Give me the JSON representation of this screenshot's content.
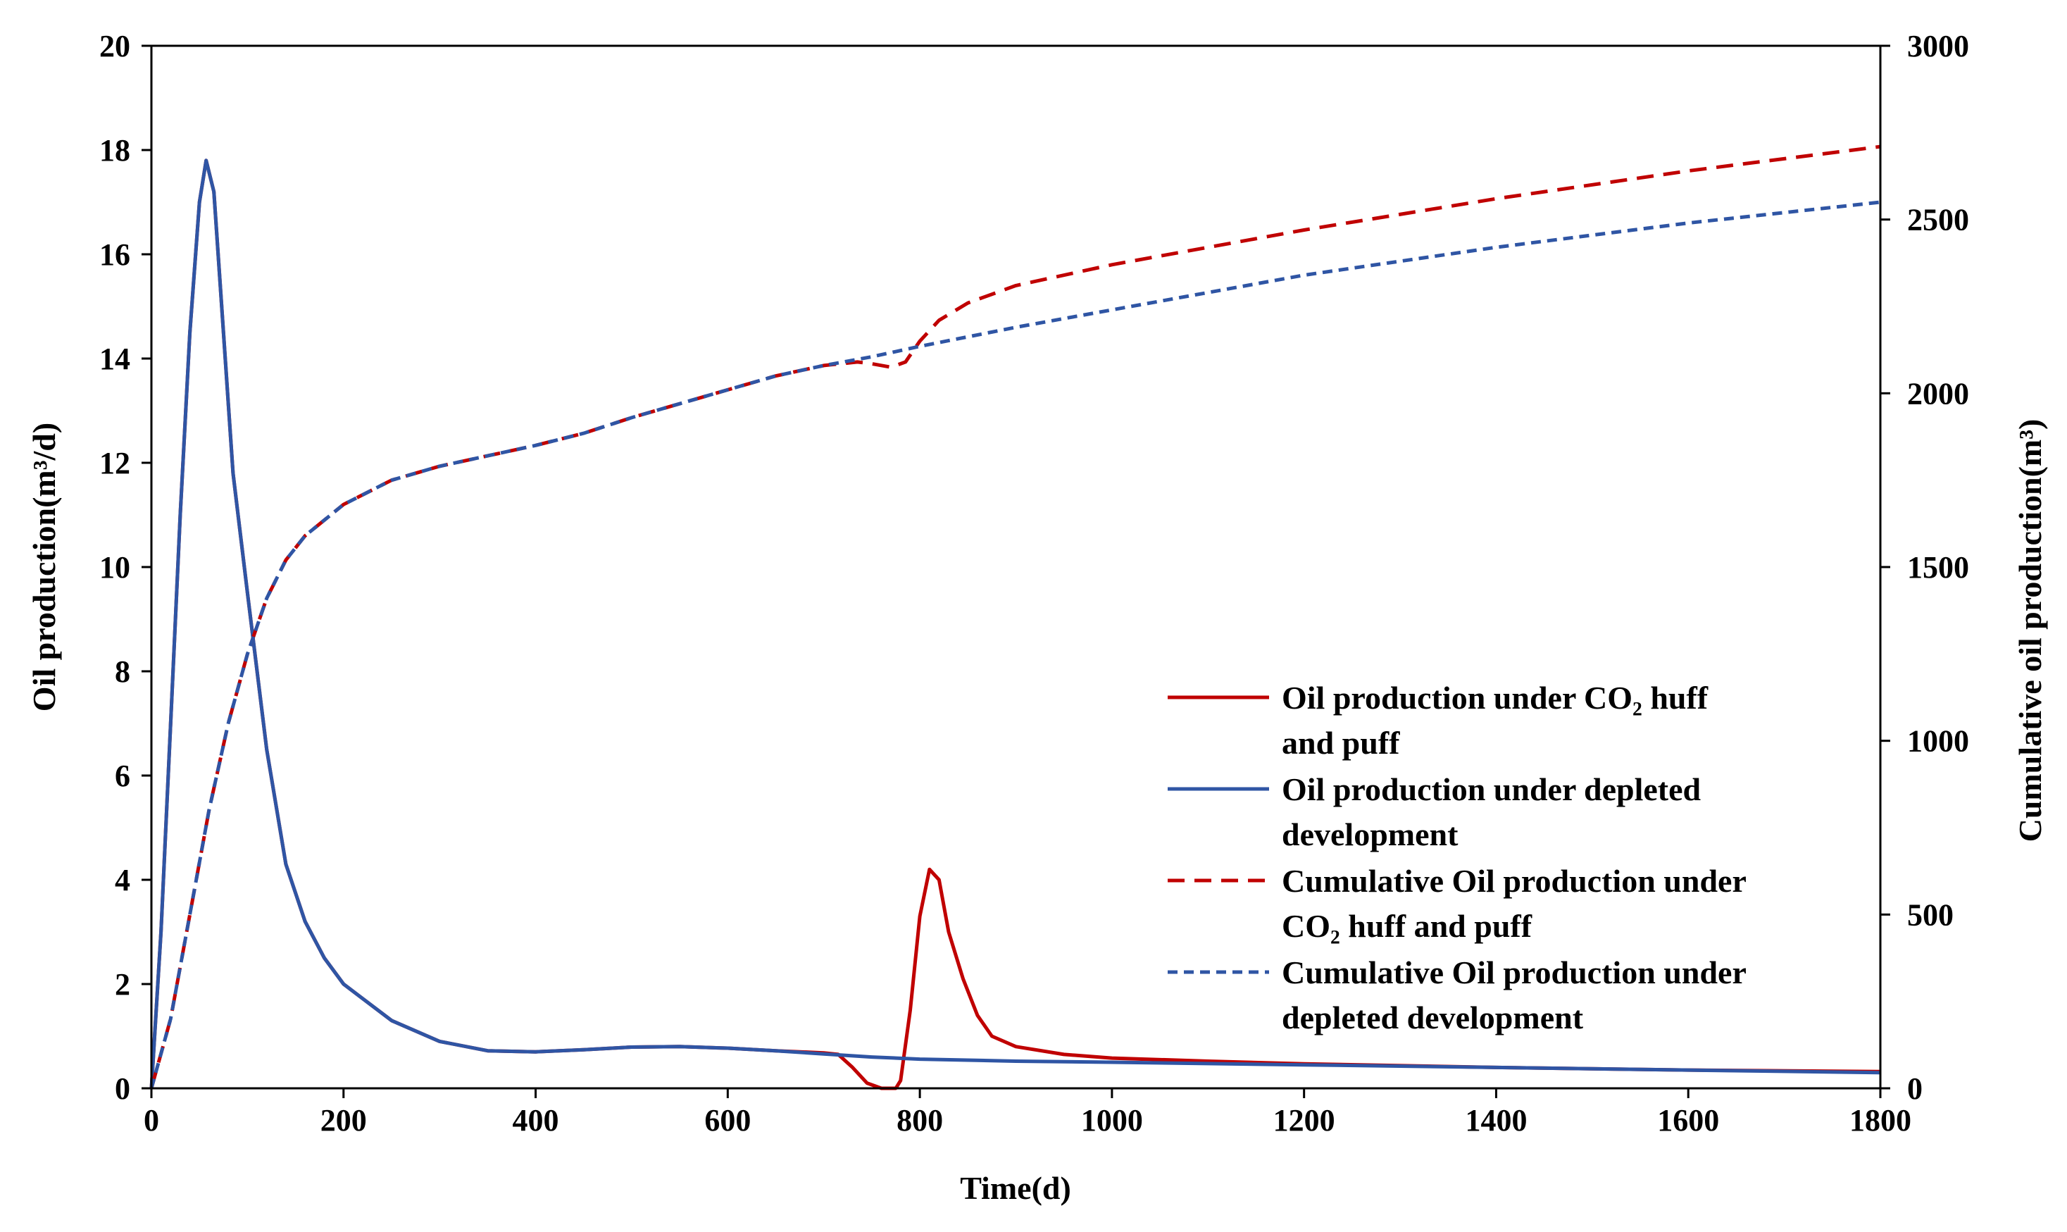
{
  "chart_data": {
    "type": "line",
    "title": "",
    "xlabel": "Time(d)",
    "ylabel_left": "Oil production(m³/d)",
    "ylabel_right": "Cumulative oil production(m³)",
    "xlim": [
      0,
      1800
    ],
    "ylim_left": [
      0,
      20
    ],
    "ylim_right": [
      0,
      3000
    ],
    "grid": false,
    "legend_position": "center-right",
    "x_ticks": [
      "0",
      "200",
      "400",
      "600",
      "800",
      "1000",
      "1200",
      "1400",
      "1600",
      "1800"
    ],
    "y_left_ticks": [
      "0",
      "2",
      "4",
      "6",
      "8",
      "10",
      "12",
      "14",
      "16",
      "18",
      "20"
    ],
    "y_right_ticks": [
      "0",
      "500",
      "1000",
      "1500",
      "2000",
      "2500",
      "3000"
    ],
    "series": [
      {
        "name": "Oil production under CO₂ huff and puff",
        "legend_lines": [
          "Oil production under CO₂ huff",
          "and puff"
        ],
        "axis": "left",
        "style": "solid",
        "color": "#C00000",
        "points": [
          [
            0,
            0
          ],
          [
            10,
            3
          ],
          [
            20,
            7
          ],
          [
            30,
            11
          ],
          [
            40,
            14.5
          ],
          [
            50,
            17
          ],
          [
            57,
            17.8
          ],
          [
            65,
            17.2
          ],
          [
            75,
            14.5
          ],
          [
            85,
            11.8
          ],
          [
            100,
            9.5
          ],
          [
            120,
            6.5
          ],
          [
            140,
            4.3
          ],
          [
            160,
            3.2
          ],
          [
            180,
            2.5
          ],
          [
            200,
            2.0
          ],
          [
            250,
            1.3
          ],
          [
            300,
            0.9
          ],
          [
            350,
            0.72
          ],
          [
            400,
            0.7
          ],
          [
            450,
            0.74
          ],
          [
            500,
            0.79
          ],
          [
            550,
            0.8
          ],
          [
            600,
            0.77
          ],
          [
            650,
            0.72
          ],
          [
            700,
            0.68
          ],
          [
            715,
            0.65
          ],
          [
            730,
            0.4
          ],
          [
            745,
            0.1
          ],
          [
            760,
            0
          ],
          [
            775,
            0
          ],
          [
            780,
            0.15
          ],
          [
            790,
            1.5
          ],
          [
            800,
            3.3
          ],
          [
            810,
            4.2
          ],
          [
            820,
            4.0
          ],
          [
            830,
            3.0
          ],
          [
            845,
            2.1
          ],
          [
            860,
            1.4
          ],
          [
            875,
            1.0
          ],
          [
            900,
            0.8
          ],
          [
            950,
            0.65
          ],
          [
            1000,
            0.58
          ],
          [
            1100,
            0.52
          ],
          [
            1200,
            0.47
          ],
          [
            1400,
            0.4
          ],
          [
            1600,
            0.35
          ],
          [
            1800,
            0.32
          ]
        ]
      },
      {
        "name": "Oil production under depleted development",
        "legend_lines": [
          "Oil production under depleted",
          "development"
        ],
        "axis": "left",
        "style": "solid",
        "color": "#2F55A4",
        "points": [
          [
            0,
            0
          ],
          [
            10,
            3
          ],
          [
            20,
            7
          ],
          [
            30,
            11
          ],
          [
            40,
            14.5
          ],
          [
            50,
            17
          ],
          [
            57,
            17.8
          ],
          [
            65,
            17.2
          ],
          [
            75,
            14.5
          ],
          [
            85,
            11.8
          ],
          [
            100,
            9.5
          ],
          [
            120,
            6.5
          ],
          [
            140,
            4.3
          ],
          [
            160,
            3.2
          ],
          [
            180,
            2.5
          ],
          [
            200,
            2.0
          ],
          [
            250,
            1.3
          ],
          [
            300,
            0.9
          ],
          [
            350,
            0.72
          ],
          [
            400,
            0.7
          ],
          [
            450,
            0.74
          ],
          [
            500,
            0.79
          ],
          [
            550,
            0.8
          ],
          [
            600,
            0.77
          ],
          [
            650,
            0.72
          ],
          [
            700,
            0.66
          ],
          [
            750,
            0.6
          ],
          [
            800,
            0.56
          ],
          [
            900,
            0.52
          ],
          [
            1000,
            0.5
          ],
          [
            1200,
            0.45
          ],
          [
            1400,
            0.4
          ],
          [
            1600,
            0.35
          ],
          [
            1800,
            0.3
          ]
        ]
      },
      {
        "name": "Cumulative Oil production under CO₂ huff and puff",
        "legend_lines": [
          "Cumulative Oil production under",
          "CO₂ huff and puff"
        ],
        "axis": "right",
        "style": "dashed",
        "color": "#C00000",
        "points": [
          [
            0,
            0
          ],
          [
            20,
            200
          ],
          [
            40,
            500
          ],
          [
            60,
            800
          ],
          [
            80,
            1050
          ],
          [
            100,
            1250
          ],
          [
            120,
            1410
          ],
          [
            140,
            1520
          ],
          [
            160,
            1590
          ],
          [
            200,
            1680
          ],
          [
            250,
            1750
          ],
          [
            300,
            1790
          ],
          [
            350,
            1820
          ],
          [
            400,
            1850
          ],
          [
            450,
            1885
          ],
          [
            500,
            1930
          ],
          [
            550,
            1970
          ],
          [
            600,
            2010
          ],
          [
            650,
            2050
          ],
          [
            700,
            2080
          ],
          [
            735,
            2090
          ],
          [
            750,
            2085
          ],
          [
            770,
            2075
          ],
          [
            785,
            2090
          ],
          [
            800,
            2150
          ],
          [
            820,
            2210
          ],
          [
            850,
            2260
          ],
          [
            900,
            2310
          ],
          [
            1000,
            2370
          ],
          [
            1100,
            2420
          ],
          [
            1200,
            2470
          ],
          [
            1400,
            2560
          ],
          [
            1600,
            2640
          ],
          [
            1800,
            2710
          ]
        ]
      },
      {
        "name": "Cumulative Oil production under depleted development",
        "legend_lines": [
          "Cumulative Oil production under",
          "depleted development"
        ],
        "axis": "right",
        "style": "dashed",
        "color": "#2F55A4",
        "points": [
          [
            0,
            0
          ],
          [
            20,
            200
          ],
          [
            40,
            500
          ],
          [
            60,
            800
          ],
          [
            80,
            1050
          ],
          [
            100,
            1250
          ],
          [
            120,
            1410
          ],
          [
            140,
            1520
          ],
          [
            160,
            1590
          ],
          [
            200,
            1680
          ],
          [
            250,
            1750
          ],
          [
            300,
            1790
          ],
          [
            350,
            1820
          ],
          [
            400,
            1850
          ],
          [
            450,
            1885
          ],
          [
            500,
            1930
          ],
          [
            550,
            1970
          ],
          [
            600,
            2010
          ],
          [
            650,
            2050
          ],
          [
            700,
            2080
          ],
          [
            750,
            2105
          ],
          [
            800,
            2135
          ],
          [
            900,
            2190
          ],
          [
            1000,
            2240
          ],
          [
            1100,
            2290
          ],
          [
            1200,
            2340
          ],
          [
            1400,
            2420
          ],
          [
            1600,
            2490
          ],
          [
            1800,
            2550
          ]
        ]
      }
    ]
  }
}
